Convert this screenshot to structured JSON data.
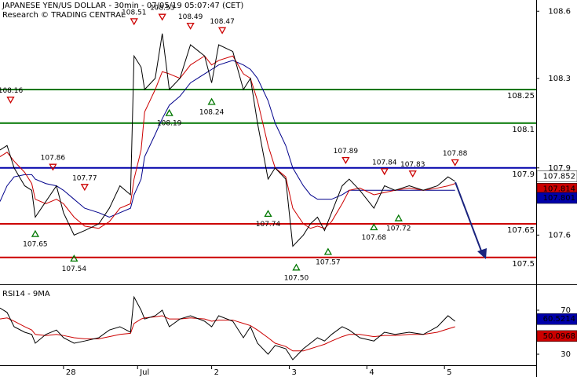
{
  "chart_data": [
    {
      "type": "line",
      "title": "JAPANESE YEN/US DOLLAR - 30min - 07/05/19 05:07:47 (CET)",
      "subtitle": "Research © TRADING CENTRAL",
      "x": [
        0,
        2,
        4,
        7,
        9,
        10,
        13,
        16,
        18,
        21,
        24,
        28,
        31,
        34,
        37,
        38,
        40,
        41,
        44,
        46,
        48,
        51,
        54,
        58,
        60,
        62,
        66,
        69,
        71,
        73,
        76,
        78,
        81,
        83,
        86,
        88,
        90,
        92,
        94,
        97,
        99,
        102,
        106,
        109,
        112,
        116,
        120,
        124,
        127,
        129
      ],
      "series": [
        {
          "color": "#000000",
          "values": [
            107.98,
            108.0,
            107.9,
            107.82,
            107.8,
            107.68,
            107.75,
            107.82,
            107.7,
            107.6,
            107.62,
            107.65,
            107.72,
            107.82,
            107.78,
            108.4,
            108.35,
            108.25,
            108.3,
            108.5,
            108.25,
            108.3,
            108.45,
            108.4,
            108.28,
            108.45,
            108.42,
            108.25,
            108.3,
            108.1,
            107.85,
            107.9,
            107.85,
            107.55,
            107.6,
            107.65,
            107.68,
            107.62,
            107.7,
            107.82,
            107.85,
            107.8,
            107.72,
            107.82,
            107.8,
            107.82,
            107.8,
            107.82,
            107.86,
            107.84
          ]
        },
        {
          "color": "#cc0000",
          "values": [
            107.95,
            107.97,
            107.93,
            107.88,
            107.83,
            107.76,
            107.74,
            107.76,
            107.74,
            107.68,
            107.64,
            107.63,
            107.66,
            107.72,
            107.74,
            107.85,
            107.98,
            108.15,
            108.25,
            108.33,
            108.32,
            108.3,
            108.36,
            108.4,
            108.36,
            108.38,
            108.4,
            108.32,
            108.3,
            108.2,
            108.0,
            107.9,
            107.86,
            107.72,
            107.65,
            107.63,
            107.64,
            107.63,
            107.66,
            107.74,
            107.8,
            107.81,
            107.78,
            107.79,
            107.8,
            107.81,
            107.8,
            107.81,
            107.82,
            107.83
          ]
        },
        {
          "color": "#00008b",
          "values": [
            107.75,
            107.82,
            107.86,
            107.87,
            107.87,
            107.85,
            107.83,
            107.82,
            107.8,
            107.76,
            107.72,
            107.7,
            107.68,
            107.7,
            107.72,
            107.78,
            107.85,
            107.95,
            108.05,
            108.12,
            108.18,
            108.22,
            108.28,
            108.32,
            108.34,
            108.36,
            108.38,
            108.36,
            108.34,
            108.3,
            108.2,
            108.1,
            108.0,
            107.9,
            107.82,
            107.78,
            107.76,
            107.76,
            107.76,
            107.78,
            107.8,
            107.8,
            107.8,
            107.8,
            107.8,
            107.8,
            107.8,
            107.8,
            107.8,
            107.8
          ]
        }
      ],
      "xlim": [
        0,
        152
      ],
      "ylim": [
        107.38,
        108.65
      ],
      "yticks": [
        108.6,
        108.3,
        107.9,
        107.6
      ],
      "levels": [
        {
          "value": 108.25,
          "color": "#007700"
        },
        {
          "value": 108.1,
          "color": "#007700"
        },
        {
          "value": 107.9,
          "color": "#0000aa"
        },
        {
          "value": 107.65,
          "color": "#cc0000"
        },
        {
          "value": 107.5,
          "color": "#cc0000"
        }
      ],
      "markers": [
        {
          "x": 3,
          "value": 108.16,
          "dir": "down"
        },
        {
          "x": 10,
          "value": 107.65,
          "dir": "up"
        },
        {
          "x": 15,
          "value": 107.86,
          "dir": "down"
        },
        {
          "x": 21,
          "value": 107.54,
          "dir": "up"
        },
        {
          "x": 24,
          "value": 107.77,
          "dir": "down"
        },
        {
          "x": 38,
          "value": 108.51,
          "dir": "down"
        },
        {
          "x": 46,
          "value": 108.53,
          "dir": "down"
        },
        {
          "x": 48,
          "value": 108.19,
          "dir": "up"
        },
        {
          "x": 54,
          "value": 108.49,
          "dir": "down"
        },
        {
          "x": 60,
          "value": 108.24,
          "dir": "up"
        },
        {
          "x": 63,
          "value": 108.47,
          "dir": "down"
        },
        {
          "x": 76,
          "value": 107.74,
          "dir": "up"
        },
        {
          "x": 84,
          "value": 107.5,
          "label": "107.50",
          "dir": "up"
        },
        {
          "x": 93,
          "value": 107.57,
          "dir": "up"
        },
        {
          "x": 98,
          "value": 107.89,
          "dir": "down"
        },
        {
          "x": 106,
          "value": 107.68,
          "dir": "up"
        },
        {
          "x": 109,
          "value": 107.84,
          "dir": "down"
        },
        {
          "x": 113,
          "value": 107.72,
          "dir": "up"
        },
        {
          "x": 117,
          "value": 107.83,
          "dir": "down"
        },
        {
          "x": 129,
          "value": 107.88,
          "dir": "down"
        }
      ],
      "last_values": [
        {
          "value": 107.852,
          "color": "#ffffff",
          "text_color": "#000000"
        },
        {
          "value": 107.814,
          "color": "#cc0000",
          "text_color": "#ffffff"
        },
        {
          "value": 107.801,
          "color": "#0000aa",
          "text_color": "#ffffff"
        }
      ]
    },
    {
      "type": "line",
      "title": "RSI14 - 9MA",
      "x": [
        0,
        2,
        4,
        7,
        9,
        10,
        13,
        16,
        18,
        21,
        24,
        28,
        31,
        34,
        37,
        38,
        40,
        41,
        44,
        46,
        48,
        51,
        54,
        58,
        60,
        62,
        66,
        69,
        71,
        73,
        76,
        78,
        81,
        83,
        86,
        88,
        90,
        92,
        94,
        97,
        99,
        102,
        106,
        109,
        112,
        116,
        120,
        124,
        127,
        129
      ],
      "series": [
        {
          "color": "#000000",
          "values": [
            72,
            68,
            55,
            50,
            48,
            40,
            48,
            52,
            45,
            40,
            42,
            45,
            52,
            55,
            50,
            82,
            70,
            62,
            65,
            70,
            55,
            62,
            65,
            60,
            55,
            65,
            60,
            45,
            55,
            40,
            30,
            38,
            35,
            25,
            35,
            40,
            45,
            42,
            48,
            55,
            52,
            45,
            42,
            50,
            48,
            50,
            48,
            55,
            65,
            60
          ]
        },
        {
          "color": "#cc0000",
          "values": [
            62,
            63,
            60,
            55,
            52,
            48,
            47,
            48,
            47,
            45,
            44,
            44,
            46,
            48,
            49,
            58,
            62,
            63,
            64,
            65,
            62,
            62,
            63,
            62,
            60,
            61,
            61,
            58,
            56,
            52,
            45,
            40,
            37,
            33,
            33,
            35,
            37,
            39,
            42,
            46,
            48,
            48,
            46,
            47,
            47,
            48,
            48,
            50,
            53,
            55
          ]
        }
      ],
      "xlim": [
        0,
        152
      ],
      "ylim": [
        20,
        91.4
      ],
      "yticks": [
        70,
        30
      ],
      "xticks": [
        {
          "value": 18,
          "label": "28"
        },
        {
          "value": 39,
          "label": "Jul"
        },
        {
          "value": 60,
          "label": "2"
        },
        {
          "value": 82,
          "label": "3"
        },
        {
          "value": 104,
          "label": "4"
        },
        {
          "value": 126,
          "label": "5"
        }
      ],
      "last_values": [
        {
          "value": 60.5214,
          "color": "#0000aa",
          "text_color": "#ffffff"
        },
        {
          "value": 50.0968,
          "color": "#cc0000",
          "text_color": "#ffffff"
        }
      ]
    }
  ]
}
